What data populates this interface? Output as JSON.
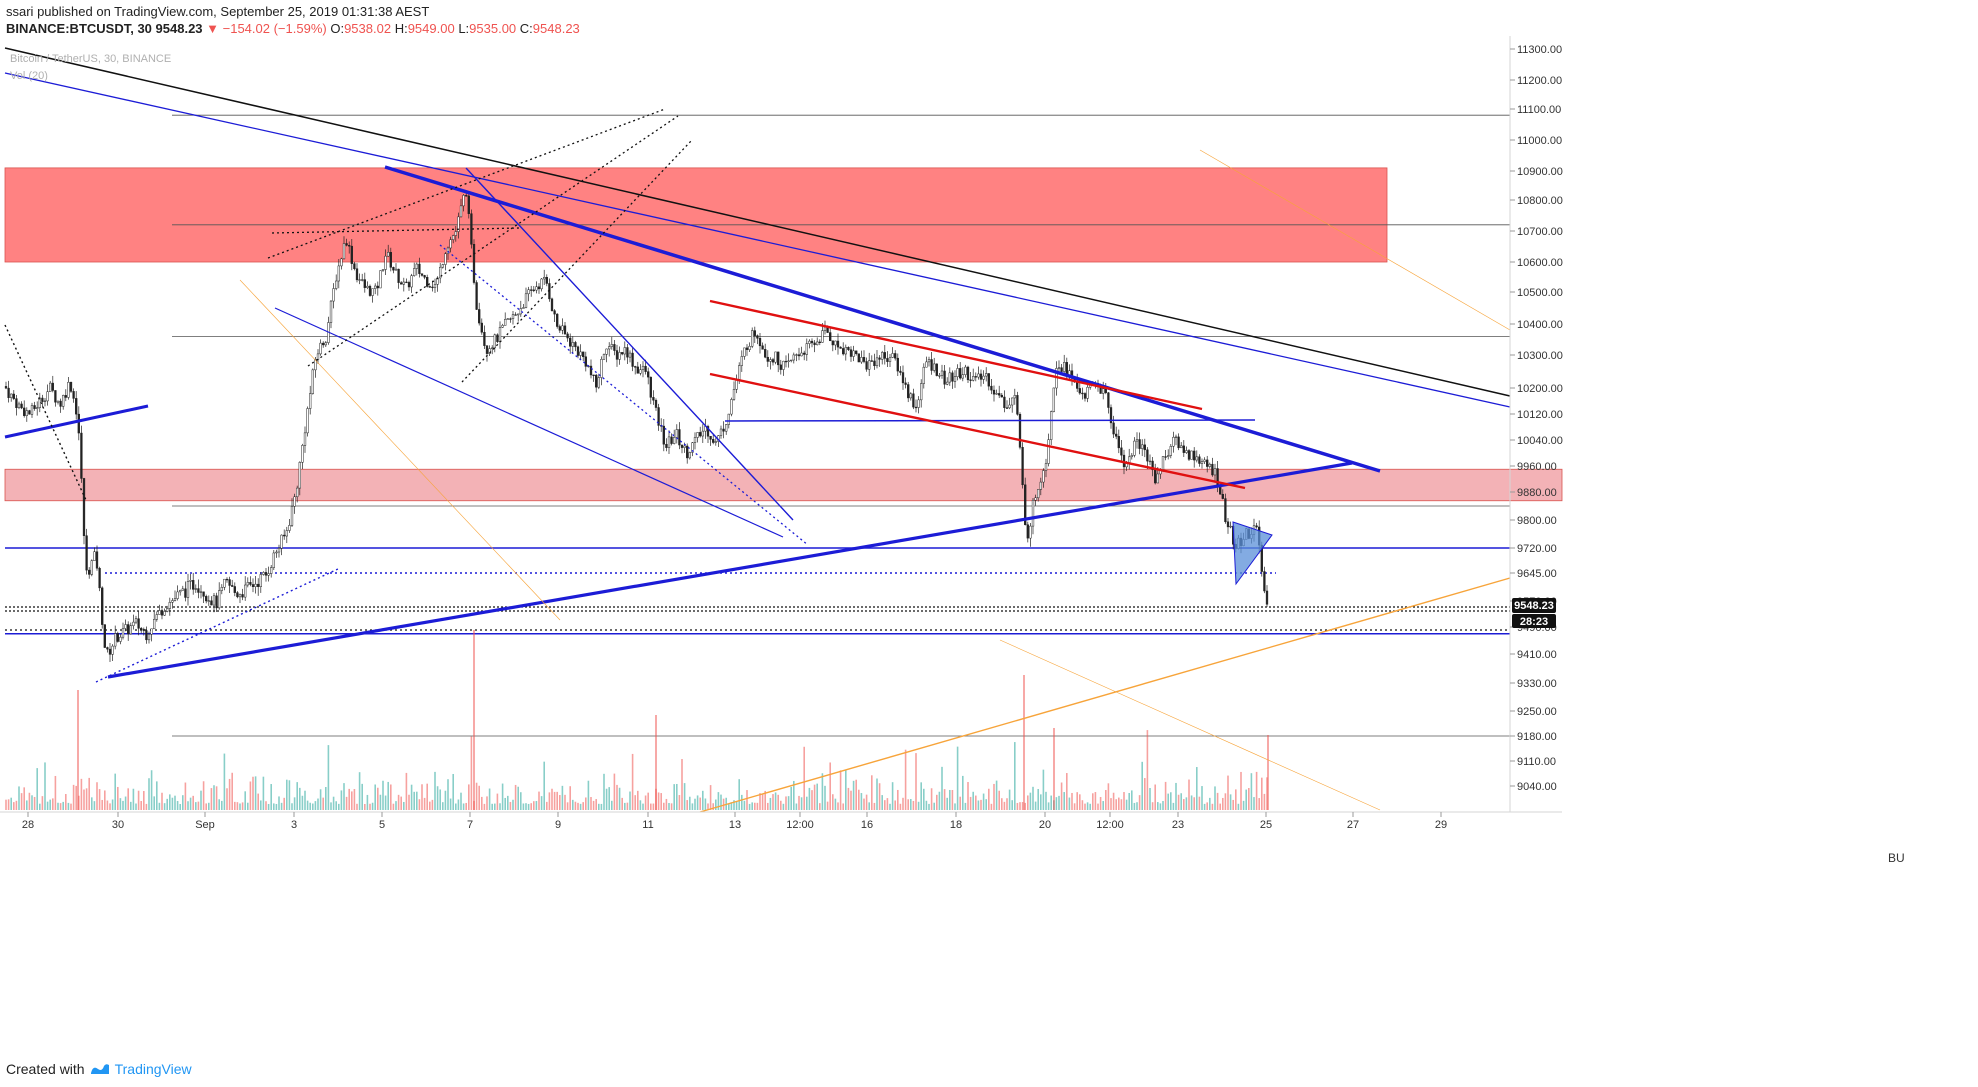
{
  "header": {
    "user": "ssari",
    "published": "published on TradingView.com, September 25, 2019 01:31:38 AEST",
    "symbol": "BINANCE:BTCUSDT, 30",
    "price": "9548.23",
    "change": "▼ −154.02 (−1.59%)",
    "ohlc_label_o": "O:",
    "ohlc_o": "9538.02",
    "ohlc_label_h": "H:",
    "ohlc_h": "9549.00",
    "ohlc_label_l": "L:",
    "ohlc_l": "9535.00",
    "ohlc_label_c": "C:",
    "ohlc_c": "9548.23"
  },
  "legend": {
    "line1": "Bitcoin / TetherUS, 30, BINANCE",
    "line2": "Vol (20)"
  },
  "footer": {
    "created_with": "Created with",
    "brand": "TradingView"
  },
  "price_tag": "9548.23",
  "countdown_tag": "28:23",
  "annotation": "BU",
  "colors": {
    "up": "#26a69a",
    "down": "#ef5350",
    "trend_blue": "#1c1cd6",
    "trend_red": "#e01010",
    "resistance_zone": "#ff7b7b",
    "support_zone": "#f2aaae",
    "orange": "#f7a43a"
  },
  "chart_data": {
    "type": "candlestick",
    "yticks": [
      11300,
      11200,
      11100,
      11000,
      10900,
      10800,
      10700,
      10600,
      10500,
      10400,
      10300,
      10200,
      10120,
      10040,
      9960,
      9880,
      9800,
      9720,
      9645,
      9570,
      9490,
      9410,
      9330,
      9250,
      9180,
      9110,
      9040
    ],
    "ytick_labels": [
      "11300.00",
      "11200.00",
      "11100.00",
      "11000.00",
      "10900.00",
      "10800.00",
      "10700.00",
      "10600.00",
      "10500.00",
      "10400.00",
      "10300.00",
      "10200.00",
      "10120.00",
      "10040.00",
      "9960.00",
      "9880.00",
      "9800.00",
      "9720.00",
      "9645.00",
      "9570.00",
      "9490.00",
      "9410.00",
      "9330.00",
      "9250.00",
      "9180.00",
      "9110.00",
      "9040.00"
    ],
    "xticks": [
      "28",
      "30",
      "Sep",
      "3",
      "5",
      "7",
      "9",
      "11",
      "13",
      "12:00",
      "16",
      "18",
      "20",
      "12:00",
      "23",
      "25",
      "27",
      "29"
    ],
    "zones": [
      {
        "name": "resistance-zone",
        "from": 10600,
        "to": 10910
      },
      {
        "name": "support-zone",
        "from": 9855,
        "to": 9950
      }
    ],
    "horizontal_levels": [
      11080,
      10720,
      10360,
      9840,
      9720,
      9470,
      9180
    ],
    "last_price": 9548.23,
    "close_path": [
      [
        0,
        10230
      ],
      [
        10,
        10180
      ],
      [
        20,
        10140
      ],
      [
        30,
        10120
      ],
      [
        40,
        10160
      ],
      [
        50,
        10200
      ],
      [
        60,
        10150
      ],
      [
        70,
        10220
      ],
      [
        78,
        10110
      ],
      [
        86,
        9640
      ],
      [
        96,
        9700
      ],
      [
        106,
        9400
      ],
      [
        116,
        9460
      ],
      [
        126,
        9480
      ],
      [
        136,
        9500
      ],
      [
        146,
        9470
      ],
      [
        156,
        9520
      ],
      [
        166,
        9560
      ],
      [
        176,
        9580
      ],
      [
        186,
        9600
      ],
      [
        196,
        9620
      ],
      [
        206,
        9590
      ],
      [
        216,
        9560
      ],
      [
        226,
        9620
      ],
      [
        236,
        9590
      ],
      [
        246,
        9600
      ],
      [
        256,
        9620
      ],
      [
        266,
        9640
      ],
      [
        276,
        9710
      ],
      [
        286,
        9760
      ],
      [
        296,
        9880
      ],
      [
        306,
        10100
      ],
      [
        316,
        10300
      ],
      [
        326,
        10360
      ],
      [
        336,
        10550
      ],
      [
        346,
        10680
      ],
      [
        356,
        10560
      ],
      [
        366,
        10510
      ],
      [
        376,
        10500
      ],
      [
        386,
        10630
      ],
      [
        396,
        10560
      ],
      [
        406,
        10510
      ],
      [
        416,
        10580
      ],
      [
        426,
        10540
      ],
      [
        436,
        10520
      ],
      [
        446,
        10650
      ],
      [
        456,
        10700
      ],
      [
        466,
        10840
      ],
      [
        476,
        10470
      ],
      [
        486,
        10320
      ],
      [
        496,
        10350
      ],
      [
        506,
        10400
      ],
      [
        516,
        10430
      ],
      [
        526,
        10480
      ],
      [
        536,
        10520
      ],
      [
        546,
        10540
      ],
      [
        556,
        10400
      ],
      [
        566,
        10360
      ],
      [
        576,
        10320
      ],
      [
        586,
        10280
      ],
      [
        596,
        10200
      ],
      [
        606,
        10340
      ],
      [
        616,
        10300
      ],
      [
        626,
        10320
      ],
      [
        636,
        10260
      ],
      [
        646,
        10250
      ],
      [
        656,
        10120
      ],
      [
        666,
        10020
      ],
      [
        676,
        10060
      ],
      [
        686,
        10000
      ],
      [
        696,
        10040
      ],
      [
        706,
        10080
      ],
      [
        716,
        10030
      ],
      [
        726,
        10100
      ],
      [
        736,
        10220
      ],
      [
        746,
        10330
      ],
      [
        756,
        10380
      ],
      [
        766,
        10300
      ],
      [
        776,
        10290
      ],
      [
        786,
        10260
      ],
      [
        796,
        10300
      ],
      [
        806,
        10320
      ],
      [
        816,
        10340
      ],
      [
        826,
        10380
      ],
      [
        836,
        10330
      ],
      [
        846,
        10320
      ],
      [
        856,
        10300
      ],
      [
        866,
        10270
      ],
      [
        876,
        10290
      ],
      [
        886,
        10300
      ],
      [
        896,
        10280
      ],
      [
        906,
        10200
      ],
      [
        916,
        10140
      ],
      [
        926,
        10280
      ],
      [
        936,
        10260
      ],
      [
        946,
        10220
      ],
      [
        956,
        10240
      ],
      [
        966,
        10250
      ],
      [
        976,
        10220
      ],
      [
        986,
        10240
      ],
      [
        996,
        10180
      ],
      [
        1006,
        10150
      ],
      [
        1016,
        10180
      ],
      [
        1026,
        9740
      ],
      [
        1036,
        9880
      ],
      [
        1046,
        9980
      ],
      [
        1056,
        10280
      ],
      [
        1066,
        10260
      ],
      [
        1076,
        10200
      ],
      [
        1086,
        10180
      ],
      [
        1096,
        10220
      ],
      [
        1106,
        10170
      ],
      [
        1116,
        10040
      ],
      [
        1126,
        9960
      ],
      [
        1136,
        10040
      ],
      [
        1146,
        10000
      ],
      [
        1156,
        9920
      ],
      [
        1166,
        10000
      ],
      [
        1176,
        10040
      ],
      [
        1186,
        10000
      ],
      [
        1196,
        9990
      ],
      [
        1206,
        9960
      ],
      [
        1216,
        9940
      ],
      [
        1226,
        9800
      ],
      [
        1236,
        9720
      ],
      [
        1246,
        9760
      ],
      [
        1256,
        9780
      ],
      [
        1266,
        9560
      ],
      [
        1268,
        9548
      ]
    ]
  }
}
